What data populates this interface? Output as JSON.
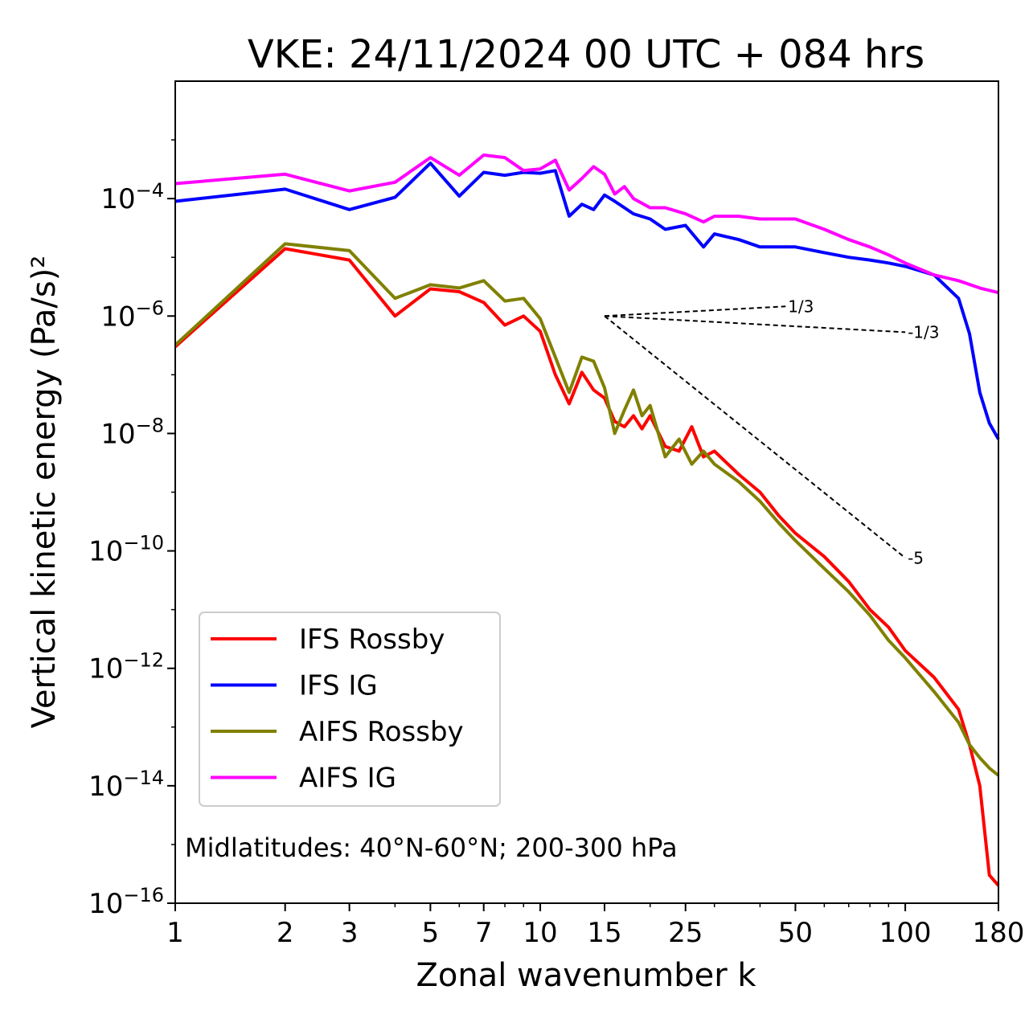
{
  "chart_data": {
    "type": "line",
    "title": "VKE: 24/11/2024 00 UTC + 084 hrs",
    "xlabel": "Zonal wavenumber k",
    "ylabel": "Vertical kinetic energy (Pa/s)²",
    "annotation": "Midlatitudes: 40°N-60°N; 200-300 hPa",
    "x_scale": "log",
    "y_scale": "log",
    "xlim": [
      1,
      180
    ],
    "ylim": [
      1e-16,
      0.01
    ],
    "x_ticks": [
      1,
      2,
      3,
      5,
      7,
      10,
      15,
      25,
      50,
      100,
      180
    ],
    "y_ticks": [
      {
        "base": "10",
        "exp": "−4",
        "value": 0.0001
      },
      {
        "base": "10",
        "exp": "−6",
        "value": 1e-06
      },
      {
        "base": "10",
        "exp": "−8",
        "value": 1e-08
      },
      {
        "base": "10",
        "exp": "−10",
        "value": 1e-10
      },
      {
        "base": "10",
        "exp": "−12",
        "value": 1e-12
      },
      {
        "base": "10",
        "exp": "−14",
        "value": 1e-14
      },
      {
        "base": "10",
        "exp": "−16",
        "value": 1e-16
      }
    ],
    "legend_position": "lower-left",
    "grid": false,
    "series": [
      {
        "name": "IFS Rossby",
        "color": "#ff0000",
        "points": [
          [
            1,
            3e-07
          ],
          [
            2,
            1.4e-05
          ],
          [
            3,
            9e-06
          ],
          [
            4,
            1e-06
          ],
          [
            5,
            2.9e-06
          ],
          [
            6,
            2.6e-06
          ],
          [
            7,
            1.7e-06
          ],
          [
            8,
            7e-07
          ],
          [
            9,
            1e-06
          ],
          [
            10,
            5.5e-07
          ],
          [
            11,
            1e-07
          ],
          [
            12,
            3.2e-08
          ],
          [
            13,
            1.1e-07
          ],
          [
            14,
            5.5e-08
          ],
          [
            15,
            4e-08
          ],
          [
            16,
            1.6e-08
          ],
          [
            17,
            1.3e-08
          ],
          [
            18,
            2e-08
          ],
          [
            19,
            1.2e-08
          ],
          [
            20,
            2e-08
          ],
          [
            22,
            6e-09
          ],
          [
            24,
            5e-09
          ],
          [
            26,
            1.3e-08
          ],
          [
            28,
            4e-09
          ],
          [
            30,
            5e-09
          ],
          [
            35,
            2e-09
          ],
          [
            40,
            1e-09
          ],
          [
            45,
            4e-10
          ],
          [
            50,
            2e-10
          ],
          [
            60,
            8e-11
          ],
          [
            70,
            3e-11
          ],
          [
            80,
            1e-11
          ],
          [
            90,
            5e-12
          ],
          [
            100,
            2e-12
          ],
          [
            120,
            7e-13
          ],
          [
            140,
            2e-13
          ],
          [
            150,
            5e-14
          ],
          [
            160,
            1e-14
          ],
          [
            170,
            3e-16
          ],
          [
            180,
            2e-16
          ]
        ]
      },
      {
        "name": "IFS IG",
        "color": "#0000ff",
        "points": [
          [
            1,
            9e-05
          ],
          [
            2,
            0.000145
          ],
          [
            3,
            6.5e-05
          ],
          [
            4,
            0.000105
          ],
          [
            5,
            0.0004
          ],
          [
            6,
            0.00011
          ],
          [
            7,
            0.00028
          ],
          [
            8,
            0.00025
          ],
          [
            9,
            0.00028
          ],
          [
            10,
            0.00027
          ],
          [
            11,
            0.0003
          ],
          [
            12,
            5e-05
          ],
          [
            13,
            8e-05
          ],
          [
            14,
            6.5e-05
          ],
          [
            15,
            0.000115
          ],
          [
            16,
            9e-05
          ],
          [
            17,
            7e-05
          ],
          [
            18,
            5.5e-05
          ],
          [
            20,
            4.5e-05
          ],
          [
            22,
            3e-05
          ],
          [
            25,
            3.5e-05
          ],
          [
            28,
            1.5e-05
          ],
          [
            30,
            2.5e-05
          ],
          [
            35,
            2e-05
          ],
          [
            40,
            1.5e-05
          ],
          [
            50,
            1.5e-05
          ],
          [
            60,
            1.2e-05
          ],
          [
            70,
            1e-05
          ],
          [
            80,
            9e-06
          ],
          [
            90,
            8e-06
          ],
          [
            100,
            7e-06
          ],
          [
            120,
            5e-06
          ],
          [
            140,
            2e-06
          ],
          [
            150,
            5e-07
          ],
          [
            160,
            5e-08
          ],
          [
            170,
            1.5e-08
          ],
          [
            180,
            8e-09
          ]
        ]
      },
      {
        "name": "AIFS Rossby",
        "color": "#808000",
        "points": [
          [
            1,
            3.2e-07
          ],
          [
            2,
            1.7e-05
          ],
          [
            3,
            1.3e-05
          ],
          [
            4,
            2e-06
          ],
          [
            5,
            3.4e-06
          ],
          [
            6,
            3e-06
          ],
          [
            7,
            4e-06
          ],
          [
            8,
            1.8e-06
          ],
          [
            9,
            2e-06
          ],
          [
            10,
            9e-07
          ],
          [
            11,
            2e-07
          ],
          [
            12,
            5e-08
          ],
          [
            13,
            2e-07
          ],
          [
            14,
            1.7e-07
          ],
          [
            15,
            6e-08
          ],
          [
            16,
            1e-08
          ],
          [
            17,
            2.5e-08
          ],
          [
            18,
            5.5e-08
          ],
          [
            19,
            2e-08
          ],
          [
            20,
            3e-08
          ],
          [
            22,
            4e-09
          ],
          [
            24,
            8e-09
          ],
          [
            26,
            3e-09
          ],
          [
            28,
            5e-09
          ],
          [
            30,
            3e-09
          ],
          [
            35,
            1.5e-09
          ],
          [
            40,
            7e-10
          ],
          [
            45,
            3e-10
          ],
          [
            50,
            1.5e-10
          ],
          [
            60,
            5e-11
          ],
          [
            70,
            2e-11
          ],
          [
            80,
            8e-12
          ],
          [
            90,
            3e-12
          ],
          [
            100,
            1.5e-12
          ],
          [
            120,
            4e-13
          ],
          [
            140,
            1.2e-13
          ],
          [
            150,
            5e-14
          ],
          [
            160,
            3e-14
          ],
          [
            170,
            2e-14
          ],
          [
            180,
            1.5e-14
          ]
        ]
      },
      {
        "name": "AIFS IG",
        "color": "#ff00ff",
        "points": [
          [
            1,
            0.00018
          ],
          [
            2,
            0.00026
          ],
          [
            3,
            0.000135
          ],
          [
            4,
            0.00019
          ],
          [
            5,
            0.0005
          ],
          [
            6,
            0.00025
          ],
          [
            7,
            0.00055
          ],
          [
            8,
            0.0005
          ],
          [
            9,
            0.0003
          ],
          [
            10,
            0.00032
          ],
          [
            11,
            0.00045
          ],
          [
            12,
            0.00014
          ],
          [
            13,
            0.00022
          ],
          [
            14,
            0.00035
          ],
          [
            15,
            0.00026
          ],
          [
            16,
            0.00012
          ],
          [
            17,
            0.00016
          ],
          [
            18,
            0.0001
          ],
          [
            20,
            7e-05
          ],
          [
            22,
            7e-05
          ],
          [
            25,
            5.5e-05
          ],
          [
            28,
            4e-05
          ],
          [
            30,
            5e-05
          ],
          [
            35,
            5e-05
          ],
          [
            40,
            4.5e-05
          ],
          [
            50,
            4.5e-05
          ],
          [
            60,
            3e-05
          ],
          [
            70,
            2e-05
          ],
          [
            80,
            1.5e-05
          ],
          [
            90,
            1.1e-05
          ],
          [
            100,
            8e-06
          ],
          [
            120,
            5e-06
          ],
          [
            140,
            4e-06
          ],
          [
            160,
            3e-06
          ],
          [
            180,
            2.5e-06
          ]
        ]
      }
    ],
    "reference_lines": [
      {
        "label": "1/3",
        "slope": 0.333,
        "points": [
          [
            15,
            1e-06
          ],
          [
            47,
            1.46e-06
          ]
        ]
      },
      {
        "label": "-1/3",
        "slope": -0.333,
        "points": [
          [
            15,
            1e-06
          ],
          [
            100,
            5.3e-07
          ]
        ]
      },
      {
        "label": "-5",
        "slope": -5,
        "points": [
          [
            15,
            1e-06
          ],
          [
            100,
            7.6e-11
          ]
        ]
      }
    ]
  }
}
